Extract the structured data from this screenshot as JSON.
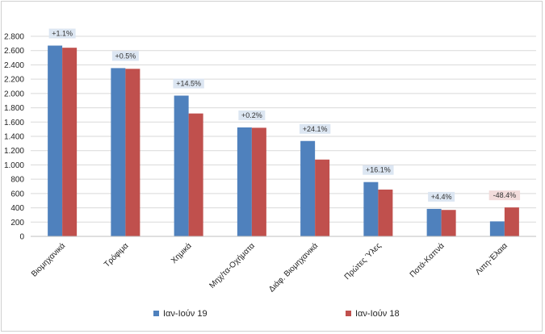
{
  "chart_data": {
    "type": "bar",
    "title": "",
    "xlabel": "",
    "ylabel": "",
    "ylim": [
      0,
      2800
    ],
    "yticks": [
      0,
      200,
      400,
      600,
      800,
      1000,
      1200,
      1400,
      1600,
      1800,
      2000,
      2200,
      2400,
      2600,
      2800
    ],
    "ytick_labels": [
      "0",
      "200",
      "400",
      "600",
      "800",
      "1.000",
      "1.200",
      "1.400",
      "1.600",
      "1.800",
      "2.000",
      "2.200",
      "2.400",
      "2.600",
      "2.800"
    ],
    "grid": "horizontal",
    "legend": "bottom",
    "categories": [
      "Βιομηχανικά",
      "Τρόφιμα",
      "Χημικά",
      "Μηχ/τα-Οχήματα",
      "Διάφ. Βιομηχανικά",
      "Πρώτες Ύλες",
      "Ποτά-Καπνά",
      "Λιπη-Έλαια"
    ],
    "series": [
      {
        "name": "Ιαν-Ιούν 19",
        "color": "#4f81bd",
        "values": [
          2670,
          2355,
          1970,
          1525,
          1335,
          760,
          385,
          210
        ]
      },
      {
        "name": "Ιαν-Ιούν 18",
        "color": "#c0504d",
        "values": [
          2640,
          2345,
          1720,
          1520,
          1075,
          655,
          370,
          405
        ]
      }
    ],
    "annotations": [
      "+1.1%",
      "+0.5%",
      "+14.5%",
      "+0.2%",
      "+24.1%",
      "+16.1%",
      "+4.4%",
      "-48.4%"
    ],
    "annotation_colors": [
      "#dce6f2",
      "#dce6f2",
      "#dce6f2",
      "#dce6f2",
      "#dce6f2",
      "#dce6f2",
      "#dce6f2",
      "#f2dcdb"
    ]
  }
}
